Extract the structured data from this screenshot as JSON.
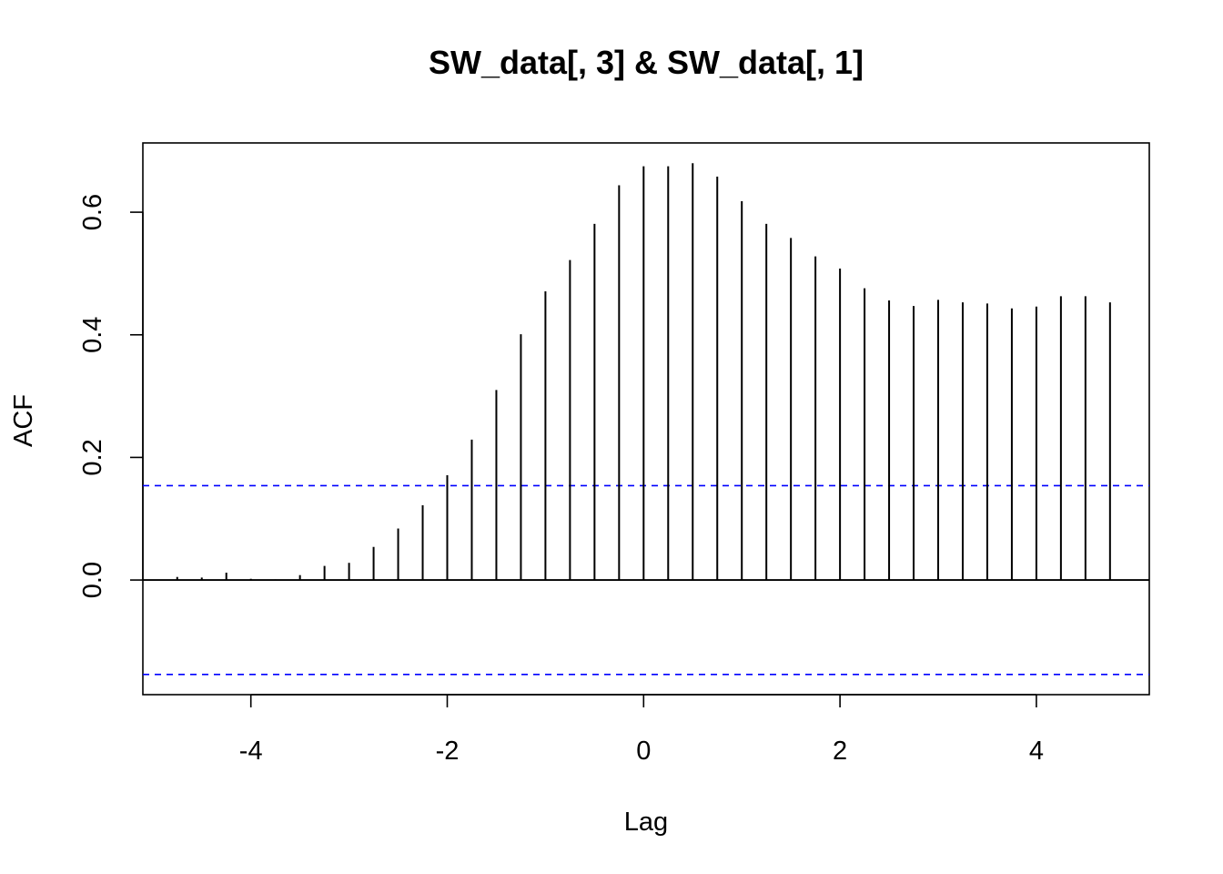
{
  "chart_data": {
    "type": "bar",
    "subtype": "cross-correlation stem plot",
    "title": "SW_data[, 3] & SW_data[, 1]",
    "xlabel": "Lag",
    "ylabel": "ACF",
    "xlim": [
      -5.1,
      5.15
    ],
    "ylim": [
      -0.187,
      0.713
    ],
    "xticks": [
      -4,
      -2,
      0,
      2,
      4
    ],
    "xtick_labels": [
      "-4",
      "-2",
      "0",
      "2",
      "4"
    ],
    "yticks": [
      0.0,
      0.2,
      0.4,
      0.6
    ],
    "ytick_labels": [
      "0.0",
      "0.2",
      "0.4",
      "0.6"
    ],
    "confidence_bound": 0.154,
    "confidence_color": "#0000ff",
    "zero_line": true,
    "grid": false,
    "legend": "none",
    "series": [
      {
        "lag": [
          -4.75,
          -4.5,
          -4.25,
          -4.0,
          -3.75,
          -3.5,
          -3.25,
          -3.0,
          -2.75,
          -2.5,
          -2.25,
          -2.0,
          -1.75,
          -1.5,
          -1.25,
          -1.0,
          -0.75,
          -0.5,
          -0.25,
          0.0,
          0.25,
          0.5,
          0.75,
          1.0,
          1.25,
          1.5,
          1.75,
          2.0,
          2.25,
          2.5,
          2.75,
          3.0,
          3.25,
          3.5,
          3.75,
          4.0,
          4.25,
          4.5,
          4.75
        ],
        "acf": [
          0.005,
          0.004,
          0.012,
          0.002,
          0.001,
          0.008,
          0.023,
          0.028,
          0.054,
          0.084,
          0.122,
          0.171,
          0.229,
          0.31,
          0.401,
          0.471,
          0.522,
          0.581,
          0.644,
          0.675,
          0.675,
          0.68,
          0.658,
          0.618,
          0.581,
          0.558,
          0.528,
          0.508,
          0.476,
          0.456,
          0.447,
          0.457,
          0.453,
          0.451,
          0.443,
          0.446,
          0.463,
          0.463,
          0.453
        ]
      }
    ]
  }
}
